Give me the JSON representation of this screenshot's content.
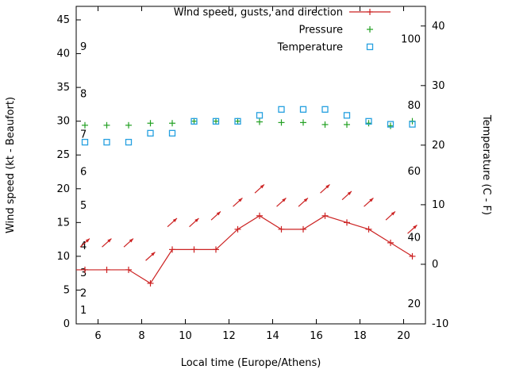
{
  "chart_data": {
    "type": "line",
    "title": "",
    "xlabel": "Local time (Europe/Athens)",
    "colors": {
      "wind": "#cc2222",
      "pressure": "#22a022",
      "temperature": "#25a0e0",
      "axis": "#000000",
      "background": "#ffffff"
    },
    "legend": [
      {
        "label": "Wind speed, gusts, and direction",
        "marker": "line-plus",
        "color": "#cc2222"
      },
      {
        "label": "Pressure",
        "marker": "plus",
        "color": "#22a022"
      },
      {
        "label": "Temperature",
        "marker": "square",
        "color": "#25a0e0"
      }
    ],
    "x_range": [
      5,
      21
    ],
    "x_ticks": [
      6,
      8,
      10,
      12,
      14,
      16,
      18,
      20
    ],
    "left_axis": {
      "label": "Wind speed (kt - Beaufort)",
      "range": [
        0,
        47
      ],
      "ticks": [
        0,
        5,
        10,
        15,
        20,
        25,
        30,
        35,
        40,
        45
      ]
    },
    "right_axis": {
      "label": "Temperature (C - F)",
      "range": [
        -10,
        43.3
      ],
      "ticks": [
        -10,
        0,
        10,
        20,
        30,
        40
      ]
    },
    "beaufort_scale": [
      {
        "label": "1",
        "kt": 2
      },
      {
        "label": "2",
        "kt": 4.5
      },
      {
        "label": "3",
        "kt": 7.5
      },
      {
        "label": "4",
        "kt": 11.5
      },
      {
        "label": "5",
        "kt": 17.5
      },
      {
        "label": "6",
        "kt": 22.5
      },
      {
        "label": "7",
        "kt": 28
      },
      {
        "label": "8",
        "kt": 34
      },
      {
        "label": "9",
        "kt": 41
      }
    ],
    "fahrenheit_scale": [
      {
        "label": "20",
        "f": 20
      },
      {
        "label": "40",
        "f": 40
      },
      {
        "label": "60",
        "f": 60
      },
      {
        "label": "80",
        "f": 80
      },
      {
        "label": "100",
        "f": 100
      }
    ],
    "x": [
      5.4,
      6.4,
      7.4,
      8.4,
      9.4,
      10.4,
      11.4,
      12.4,
      13.4,
      14.4,
      15.4,
      16.4,
      17.4,
      18.4,
      19.4,
      20.4
    ],
    "series": {
      "wind_speed_kt": [
        8,
        8,
        8,
        6,
        11,
        11,
        11,
        14,
        16,
        14,
        14,
        16,
        15,
        14,
        12,
        10
      ],
      "gusts_kt": [
        12,
        12,
        12,
        10,
        15,
        15,
        16,
        18,
        20,
        18,
        18,
        20,
        19,
        18,
        16,
        14
      ],
      "wind_direction_deg": 42,
      "pressure_left_axis": [
        29.4,
        29.4,
        29.4,
        29.7,
        29.7,
        30.0,
        30.0,
        30.0,
        29.9,
        29.8,
        29.8,
        29.5,
        29.5,
        29.7,
        29.3,
        30.0
      ],
      "temperature_c": [
        20.5,
        20.5,
        20.5,
        22,
        22,
        24,
        24,
        24,
        25,
        26,
        26,
        26,
        25,
        24,
        23.5,
        23.5
      ]
    }
  }
}
